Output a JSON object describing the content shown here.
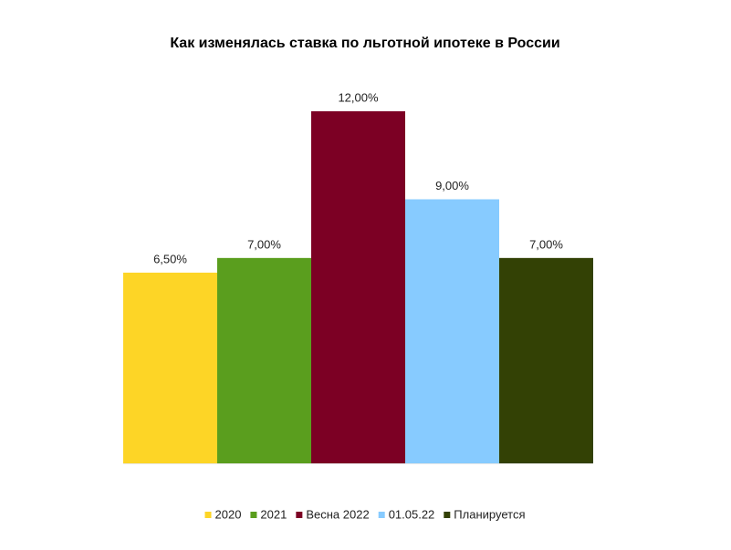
{
  "chart_data": {
    "type": "bar",
    "title": "Как изменялась ставка по льготной ипотеке в России",
    "ylim": [
      0,
      12
    ],
    "series": [
      {
        "name": "2020",
        "color": "#fdd526",
        "values": [
          6.5
        ],
        "value_labels": [
          "6,50%"
        ]
      },
      {
        "name": "2021",
        "color": "#5a9e1e",
        "values": [
          7
        ],
        "value_labels": [
          "7,00%"
        ]
      },
      {
        "name": "Весна 2022",
        "color": "#7c0024",
        "values": [
          12
        ],
        "value_labels": [
          "12,00%"
        ]
      },
      {
        "name": "01.05.22",
        "color": "#87cbff",
        "values": [
          9
        ],
        "value_labels": [
          "9,00%"
        ]
      },
      {
        "name": "Планируется",
        "color": "#334105",
        "values": [
          7
        ],
        "value_labels": [
          "7,00%"
        ]
      }
    ],
    "legend": "bottom"
  }
}
